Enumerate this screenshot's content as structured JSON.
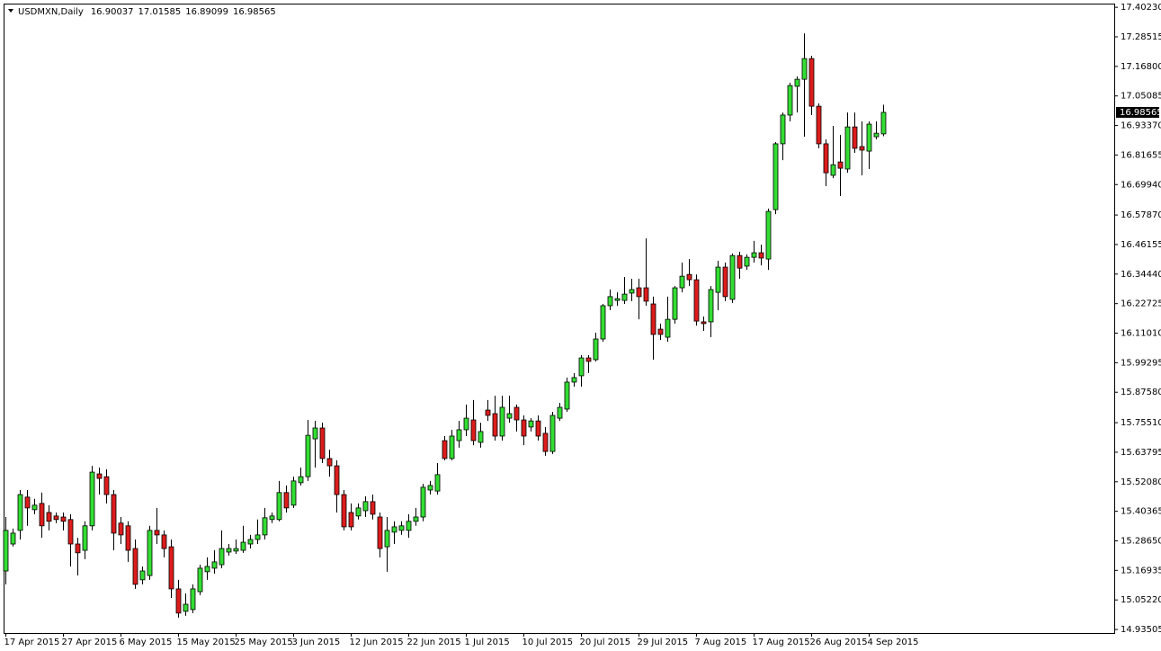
{
  "chart_data": {
    "type": "candlestick",
    "title": "USDMXN,Daily",
    "up_color": "#33dd33",
    "down_color": "#dd1c1c",
    "wick_color": "#000000",
    "ylim": [
      14.921,
      17.417
    ],
    "yticks": [
      {
        "value": 17.4023,
        "label": "17.40230"
      },
      {
        "value": 17.28515,
        "label": "17.28515"
      },
      {
        "value": 17.168,
        "label": "17.16800"
      },
      {
        "value": 17.05085,
        "label": "17.05085"
      },
      {
        "value": 16.9337,
        "label": "16.93370"
      },
      {
        "value": 16.81655,
        "label": "16.81655"
      },
      {
        "value": 16.6994,
        "label": "16.69940"
      },
      {
        "value": 16.5787,
        "label": "16.57870"
      },
      {
        "value": 16.46155,
        "label": "16.46155"
      },
      {
        "value": 16.3444,
        "label": "16.34440"
      },
      {
        "value": 16.22725,
        "label": "16.22725"
      },
      {
        "value": 16.1101,
        "label": "16.11010"
      },
      {
        "value": 15.99295,
        "label": "15.99295"
      },
      {
        "value": 15.8758,
        "label": "15.87580"
      },
      {
        "value": 15.7551,
        "label": "15.75510"
      },
      {
        "value": 15.63795,
        "label": "15.63795"
      },
      {
        "value": 15.5208,
        "label": "15.52080"
      },
      {
        "value": 15.40365,
        "label": "15.40365"
      },
      {
        "value": 15.2865,
        "label": "15.28650"
      },
      {
        "value": 15.16935,
        "label": "15.16935"
      },
      {
        "value": 15.0522,
        "label": "15.05220"
      },
      {
        "value": 14.93505,
        "label": "14.93505"
      }
    ],
    "categories": [
      "17 Apr 2015",
      null,
      null,
      null,
      null,
      null,
      null,
      null,
      "27 Apr 2015",
      null,
      null,
      null,
      null,
      null,
      null,
      null,
      "6 May 2015",
      null,
      null,
      null,
      null,
      null,
      null,
      null,
      "15 May 2015",
      null,
      null,
      null,
      null,
      null,
      null,
      null,
      "25 May 2015",
      null,
      null,
      null,
      null,
      null,
      null,
      null,
      "3 Jun 2015",
      null,
      null,
      null,
      null,
      null,
      null,
      null,
      "12 Jun 2015",
      null,
      null,
      null,
      null,
      null,
      null,
      null,
      "22 Jun 2015",
      null,
      null,
      null,
      null,
      null,
      null,
      null,
      "1 Jul 2015",
      null,
      null,
      null,
      null,
      null,
      null,
      null,
      "10 Jul 2015",
      null,
      null,
      null,
      null,
      null,
      null,
      null,
      "20 Jul 2015",
      null,
      null,
      null,
      null,
      null,
      null,
      null,
      "29 Jul 2015",
      null,
      null,
      null,
      null,
      null,
      null,
      null,
      "7 Aug 2015",
      null,
      null,
      null,
      null,
      null,
      null,
      null,
      "17 Aug 2015",
      null,
      null,
      null,
      null,
      null,
      null,
      null,
      "26 Aug 2015",
      null,
      null,
      null,
      null,
      null,
      null,
      null,
      "4 Sep 2015",
      null,
      null
    ],
    "open": [
      15.167,
      15.274,
      15.328,
      15.46,
      15.41,
      15.435,
      15.399,
      15.385,
      15.381,
      15.371,
      15.274,
      15.249,
      15.346,
      15.552,
      15.541,
      15.47,
      15.357,
      15.346,
      15.256,
      15.132,
      15.149,
      15.328,
      15.31,
      15.263,
      15.096,
      15.007,
      15.014,
      15.085,
      15.164,
      15.178,
      15.192,
      15.242,
      15.246,
      15.249,
      15.274,
      15.292,
      15.31,
      15.371,
      15.371,
      15.478,
      15.428,
      15.517,
      15.541,
      15.691,
      15.734,
      15.613,
      15.584,
      15.47,
      15.399,
      15.385,
      15.406,
      15.442,
      15.381,
      15.263,
      15.321,
      15.328,
      15.328,
      15.364,
      15.381,
      15.488,
      15.484,
      15.684,
      15.613,
      15.684,
      15.727,
      15.766,
      15.677,
      15.805,
      15.791,
      15.702,
      15.773,
      15.816,
      15.766,
      15.738,
      15.762,
      15.713,
      15.641,
      15.773,
      15.809,
      15.916,
      15.941,
      16.012,
      16.005,
      16.087,
      16.219,
      16.24,
      16.24,
      16.269,
      16.29,
      16.29,
      16.226,
      16.126,
      16.094,
      16.165,
      16.29,
      16.343,
      16.322,
      16.155,
      16.155,
      16.272,
      16.372,
      16.244,
      16.418,
      16.376,
      16.411,
      16.429,
      16.404,
      16.6,
      16.861,
      16.975,
      17.089,
      17.117,
      17.199,
      17.01,
      16.861,
      16.736,
      16.789,
      16.761,
      16.928,
      16.85,
      16.832,
      16.889,
      16.90037
    ],
    "high": [
      15.381,
      15.335,
      15.488,
      15.488,
      15.453,
      15.478,
      15.428,
      15.399,
      15.399,
      15.392,
      15.299,
      15.364,
      15.584,
      15.577,
      15.57,
      15.488,
      15.381,
      15.364,
      15.292,
      15.185,
      15.346,
      15.417,
      15.328,
      15.292,
      15.132,
      15.078,
      15.114,
      15.192,
      15.221,
      15.249,
      15.328,
      15.274,
      15.292,
      15.346,
      15.31,
      15.371,
      15.417,
      15.399,
      15.524,
      15.506,
      15.541,
      15.577,
      15.766,
      15.762,
      15.755,
      15.648,
      15.606,
      15.488,
      15.435,
      15.435,
      15.463,
      15.47,
      15.399,
      15.381,
      15.364,
      15.364,
      15.392,
      15.417,
      15.513,
      15.524,
      15.595,
      15.702,
      15.727,
      15.762,
      15.827,
      15.845,
      15.755,
      15.845,
      15.862,
      15.862,
      15.862,
      15.827,
      15.784,
      15.773,
      15.784,
      15.738,
      15.798,
      15.834,
      15.934,
      15.952,
      16.023,
      16.023,
      16.112,
      16.226,
      16.283,
      16.272,
      16.333,
      16.326,
      16.326,
      16.486,
      16.255,
      16.148,
      16.255,
      16.297,
      16.39,
      16.404,
      16.343,
      16.176,
      16.297,
      16.397,
      16.39,
      16.426,
      16.433,
      16.422,
      16.476,
      16.461,
      16.604,
      16.868,
      16.985,
      17.103,
      17.128,
      17.299,
      17.21,
      17.021,
      16.878,
      16.932,
      16.896,
      16.985,
      16.985,
      16.95,
      16.95,
      16.95,
      17.01585
    ],
    "low": [
      15.114,
      15.264,
      15.292,
      15.346,
      15.392,
      15.299,
      15.328,
      15.357,
      15.328,
      15.185,
      15.149,
      15.214,
      15.328,
      15.47,
      15.435,
      15.249,
      15.274,
      15.203,
      15.096,
      15.114,
      15.132,
      15.274,
      15.221,
      15.06,
      14.982,
      14.989,
      15.0,
      15.071,
      15.132,
      15.157,
      15.178,
      15.228,
      15.235,
      15.239,
      15.256,
      15.274,
      15.292,
      15.357,
      15.364,
      15.399,
      15.417,
      15.506,
      15.524,
      15.577,
      15.595,
      15.541,
      15.399,
      15.328,
      15.328,
      15.371,
      15.381,
      15.371,
      15.221,
      15.164,
      15.274,
      15.31,
      15.299,
      15.346,
      15.364,
      15.47,
      15.47,
      15.606,
      15.606,
      15.656,
      15.702,
      15.666,
      15.656,
      15.762,
      15.684,
      15.684,
      15.755,
      15.72,
      15.666,
      15.72,
      15.684,
      15.624,
      15.631,
      15.762,
      15.798,
      15.898,
      15.898,
      15.952,
      15.998,
      16.076,
      16.201,
      16.219,
      16.226,
      16.237,
      16.165,
      16.219,
      16.005,
      16.083,
      16.076,
      16.148,
      16.272,
      16.297,
      16.14,
      16.119,
      16.094,
      16.201,
      16.237,
      16.23,
      16.326,
      16.361,
      16.39,
      16.379,
      16.361,
      16.582,
      16.796,
      16.95,
      16.985,
      16.889,
      16.975,
      16.843,
      16.693,
      16.725,
      16.654,
      16.746,
      16.825,
      16.736,
      16.761,
      16.879,
      16.89099
    ],
    "close": [
      15.328,
      15.317,
      15.47,
      15.417,
      15.428,
      15.346,
      15.364,
      15.371,
      15.364,
      15.274,
      15.239,
      15.346,
      15.559,
      15.534,
      15.47,
      15.317,
      15.31,
      15.249,
      15.114,
      15.167,
      15.328,
      15.31,
      15.256,
      15.096,
      15.0,
      15.035,
      15.096,
      15.178,
      15.185,
      15.203,
      15.256,
      15.256,
      15.256,
      15.281,
      15.292,
      15.31,
      15.378,
      15.385,
      15.478,
      15.417,
      15.524,
      15.541,
      15.705,
      15.734,
      15.613,
      15.584,
      15.47,
      15.342,
      15.342,
      15.417,
      15.442,
      15.392,
      15.256,
      15.328,
      15.342,
      15.346,
      15.364,
      15.381,
      15.499,
      15.506,
      15.549,
      15.613,
      15.702,
      15.727,
      15.773,
      15.684,
      15.72,
      15.784,
      15.702,
      15.816,
      15.791,
      15.766,
      15.702,
      15.762,
      15.702,
      15.641,
      15.784,
      15.816,
      15.916,
      15.934,
      16.012,
      15.998,
      16.087,
      16.219,
      16.255,
      16.247,
      16.265,
      16.283,
      16.255,
      16.237,
      16.105,
      16.105,
      16.165,
      16.29,
      16.336,
      16.322,
      16.158,
      16.148,
      16.283,
      16.372,
      16.255,
      16.418,
      16.368,
      16.411,
      16.429,
      16.408,
      16.593,
      16.861,
      16.975,
      17.092,
      17.117,
      17.199,
      17.01,
      16.861,
      16.746,
      16.778,
      16.764,
      16.928,
      16.843,
      16.836,
      16.939,
      16.903,
      16.98565
    ]
  }
}
